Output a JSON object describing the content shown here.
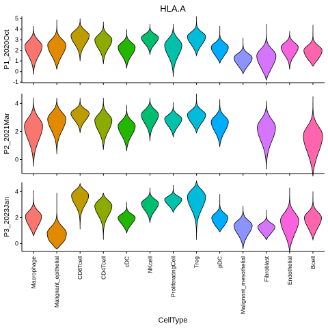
{
  "chart_data": {
    "type": "violin",
    "title": "HLA.A",
    "xlabel": "CellType",
    "ylabel": "",
    "categories": [
      "Macrophage",
      "Malignant_epithelial",
      "CD8Tcell",
      "CD4Tcell",
      "cDC",
      "NKcell",
      "ProliferatingCell",
      "Treg",
      "pDC",
      "Malignant_mesothelial",
      "Fibroblast",
      "Endothelial",
      "Bcell"
    ],
    "colors": [
      "#F8766D",
      "#E18A00",
      "#BE9C00",
      "#8CAB00",
      "#24B700",
      "#00BE70",
      "#00C1AB",
      "#00BBDA",
      "#00ACFC",
      "#8B93FF",
      "#D575FE",
      "#F962DD",
      "#FF65AC"
    ],
    "panels": [
      {
        "label": "P1_2020Oct",
        "ylim": [
          -1.05,
          5.2
        ],
        "yticks": [
          -1,
          0,
          1,
          2,
          3,
          4,
          5
        ],
        "violins": [
          {
            "category": "Macrophage",
            "min": -0.3,
            "max": 4.3,
            "mode": 2.4,
            "width": 0.8
          },
          {
            "category": "Malignant_epithelial",
            "min": 0.2,
            "max": 4.9,
            "mode": 2.5,
            "width": 0.85
          },
          {
            "category": "CD8Tcell",
            "min": 1.0,
            "max": 5.0,
            "mode": 3.4,
            "width": 0.85
          },
          {
            "category": "CD4Tcell",
            "min": 0.7,
            "max": 4.7,
            "mode": 3.0,
            "width": 0.8
          },
          {
            "category": "cDC",
            "min": 0.3,
            "max": 4.0,
            "mode": 2.3,
            "width": 0.8
          },
          {
            "category": "NKcell",
            "min": 1.6,
            "max": 4.5,
            "mode": 3.2,
            "width": 0.8
          },
          {
            "category": "ProliferatingCell",
            "min": -0.5,
            "max": 4.5,
            "mode": 2.5,
            "width": 0.8
          },
          {
            "category": "Treg",
            "min": 1.5,
            "max": 5.2,
            "mode": 3.3,
            "width": 0.85
          },
          {
            "category": "pDC",
            "min": 0.8,
            "max": 4.3,
            "mode": 2.3,
            "width": 0.8
          },
          {
            "category": "Malignant_mesothelial",
            "min": -0.2,
            "max": 3.2,
            "mode": 1.3,
            "width": 0.85
          },
          {
            "category": "Fibroblast",
            "min": -0.8,
            "max": 4.5,
            "mode": 1.5,
            "width": 0.9
          },
          {
            "category": "Endothelial",
            "min": 0.2,
            "max": 3.8,
            "mode": 2.3,
            "width": 0.8
          },
          {
            "category": "Bcell",
            "min": 0.5,
            "max": 4.4,
            "mode": 2.0,
            "width": 0.85
          }
        ]
      },
      {
        "label": "P2_2021Mar",
        "ylim": [
          -1.0,
          4.7
        ],
        "yticks": [
          0,
          2,
          4
        ],
        "violins": [
          {
            "category": "Macrophage",
            "min": -0.5,
            "max": 4.4,
            "mode": 2.4,
            "width": 0.85
          },
          {
            "category": "Malignant_epithelial",
            "min": 0.4,
            "max": 4.4,
            "mode": 2.9,
            "width": 0.85
          },
          {
            "category": "CD8Tcell",
            "min": 1.9,
            "max": 4.4,
            "mode": 3.3,
            "width": 0.85
          },
          {
            "category": "CD4Tcell",
            "min": 0.7,
            "max": 4.4,
            "mode": 2.8,
            "width": 0.8
          },
          {
            "category": "cDC",
            "min": 0.6,
            "max": 3.9,
            "mode": 2.4,
            "width": 0.8
          },
          {
            "category": "NKcell",
            "min": 1.3,
            "max": 4.4,
            "mode": 3.2,
            "width": 0.8
          },
          {
            "category": "ProliferatingCell",
            "min": 1.6,
            "max": 4.1,
            "mode": 2.9,
            "width": 0.8
          },
          {
            "category": "Treg",
            "min": 1.9,
            "max": 4.7,
            "mode": 3.2,
            "width": 0.85
          },
          {
            "category": "pDC",
            "min": 0.9,
            "max": 4.3,
            "mode": 2.7,
            "width": 0.8
          },
          {
            "category": "Fibroblast",
            "min": -0.7,
            "max": 4.2,
            "mode": 2.3,
            "width": 0.85
          },
          {
            "category": "Bcell",
            "min": -1.2,
            "max": 4.5,
            "mode": 1.7,
            "width": 0.9
          }
        ]
      },
      {
        "label": "P3_2023Jan",
        "ylim": [
          -0.6,
          4.7
        ],
        "yticks": [
          0,
          2,
          4
        ],
        "violins": [
          {
            "category": "Macrophage",
            "min": 0.6,
            "max": 4.1,
            "mode": 2.1,
            "width": 0.75
          },
          {
            "category": "Malignant_epithelial",
            "min": -0.4,
            "max": 3.9,
            "mode": 0.8,
            "width": 0.9
          },
          {
            "category": "CD8Tcell",
            "min": 1.1,
            "max": 4.6,
            "mode": 3.7,
            "width": 0.8
          },
          {
            "category": "CD4Tcell",
            "min": 0.3,
            "max": 3.9,
            "mode": 2.9,
            "width": 0.8
          },
          {
            "category": "cDC",
            "min": 0.8,
            "max": 3.2,
            "mode": 2.0,
            "width": 0.8
          },
          {
            "category": "NKcell",
            "min": 1.6,
            "max": 4.3,
            "mode": 3.1,
            "width": 0.8
          },
          {
            "category": "ProliferatingCell",
            "min": 2.4,
            "max": 4.5,
            "mode": 3.4,
            "width": 0.8
          },
          {
            "category": "Treg",
            "min": 0.3,
            "max": 4.8,
            "mode": 3.6,
            "width": 0.85
          },
          {
            "category": "pDC",
            "min": 0.9,
            "max": 3.8,
            "mode": 2.0,
            "width": 0.75
          },
          {
            "category": "Malignant_mesothelial",
            "min": -0.4,
            "max": 2.9,
            "mode": 1.4,
            "width": 0.85
          },
          {
            "category": "Fibroblast",
            "min": 0.3,
            "max": 2.6,
            "mode": 1.3,
            "width": 0.8
          },
          {
            "category": "Endothelial",
            "min": -0.6,
            "max": 4.3,
            "mode": 1.8,
            "width": 0.85
          },
          {
            "category": "Bcell",
            "min": 0.3,
            "max": 4.0,
            "mode": 2.0,
            "width": 0.8
          }
        ]
      }
    ]
  }
}
